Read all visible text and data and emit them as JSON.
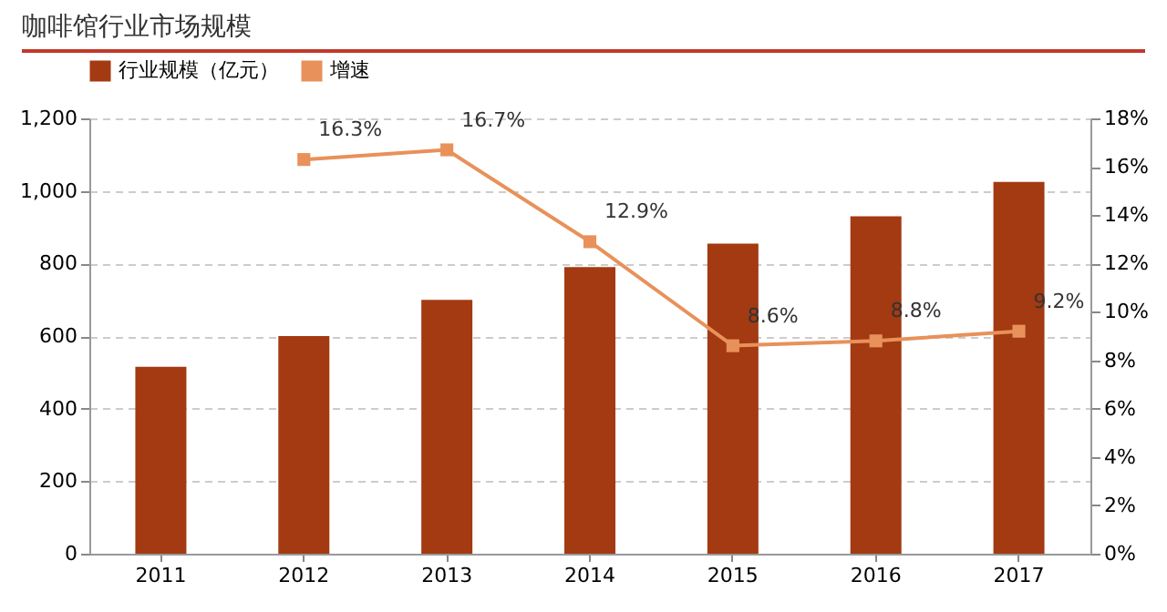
{
  "chart_data": {
    "type": "bar",
    "title": "咖啡馆行业市场规模",
    "categories": [
      "2011",
      "2012",
      "2013",
      "2014",
      "2015",
      "2016",
      "2017"
    ],
    "series": [
      {
        "name": "行业规模（亿元）",
        "color": "#a33a12",
        "values": [
          515,
          600,
          700,
          790,
          855,
          930,
          1025
        ]
      },
      {
        "name": "增速",
        "type": "line",
        "axis": "y2",
        "color": "#e8915a",
        "marker": "square",
        "values": [
          null,
          16.3,
          16.7,
          12.9,
          8.6,
          8.8,
          9.2
        ],
        "value_labels": [
          null,
          "16.3%",
          "16.7%",
          "12.9%",
          "8.6%",
          "8.8%",
          "9.2%"
        ]
      }
    ],
    "ylim": [
      0,
      1200
    ],
    "yticks": [
      0,
      200,
      400,
      600,
      800,
      {
        "value": 1000,
        "label": "1,000"
      },
      {
        "value": 1200,
        "label": "1,200"
      }
    ],
    "y2lim": [
      0,
      18
    ],
    "y2ticks": [
      {
        "value": 0,
        "label": "0%"
      },
      {
        "value": 2,
        "label": "2%"
      },
      {
        "value": 4,
        "label": "4%"
      },
      {
        "value": 6,
        "label": "6%"
      },
      {
        "value": 8,
        "label": "8%"
      },
      {
        "value": 10,
        "label": "10%"
      },
      {
        "value": 12,
        "label": "12%"
      },
      {
        "value": 14,
        "label": "14%"
      },
      {
        "value": 16,
        "label": "16%"
      },
      {
        "value": 18,
        "label": "18%"
      }
    ],
    "grid": "y",
    "legend": "top"
  }
}
